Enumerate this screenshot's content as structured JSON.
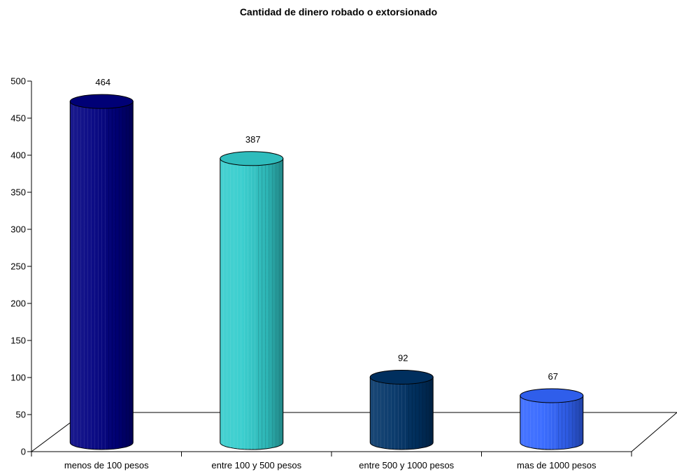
{
  "chart_data": {
    "type": "bar",
    "title": "Cantidad de dinero robado o extorsionado",
    "xlabel": "",
    "ylabel": "",
    "categories": [
      "menos de 100 pesos",
      "entre 100 y 500 pesos",
      "entre 500 y 1000 pesos",
      "mas de 1000 pesos"
    ],
    "values": [
      464,
      387,
      92,
      67
    ],
    "data_labels": [
      "464",
      "387",
      "92",
      "67"
    ],
    "ylim": [
      0,
      500
    ],
    "yticks": [
      0,
      50,
      100,
      150,
      200,
      250,
      300,
      350,
      400,
      450,
      500
    ],
    "grid": false,
    "legend": "none",
    "bar_shape": "3d-cylinder",
    "colors": [
      "#000080",
      "#33CCCC",
      "#003366",
      "#3366FF"
    ]
  }
}
